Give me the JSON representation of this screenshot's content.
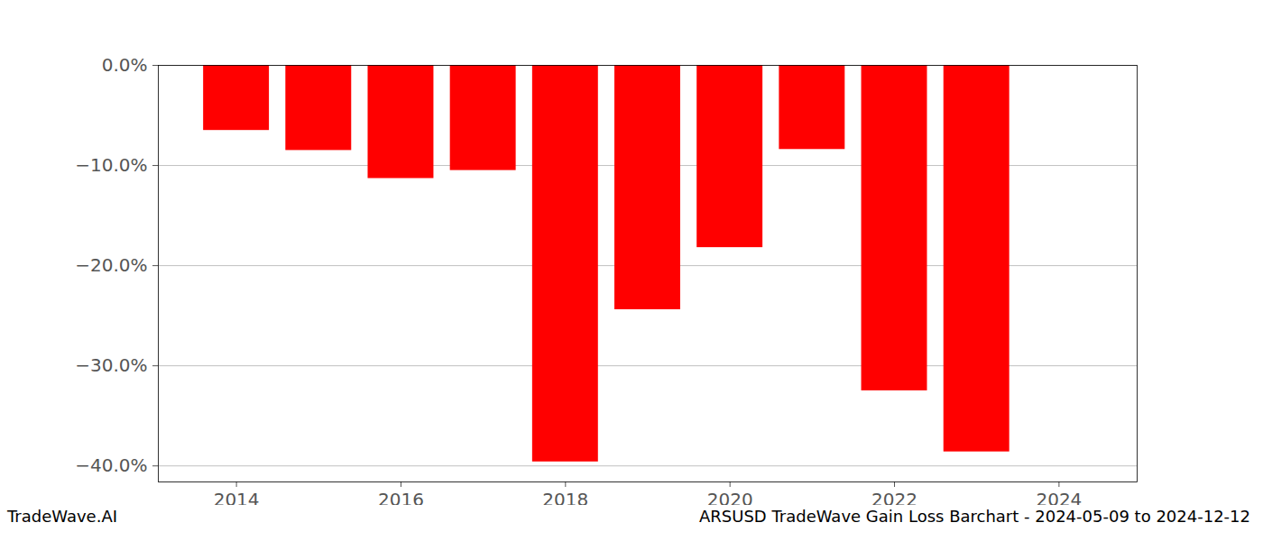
{
  "chart_data": {
    "type": "bar",
    "title": "ARSUSD TradeWave Gain Loss Barchart - 2024-05-09 to 2024-12-12",
    "source": "TradeWave.AI",
    "x": [
      2014,
      2015,
      2016,
      2017,
      2018,
      2019,
      2020,
      2021,
      2022,
      2023
    ],
    "values": [
      -6.5,
      -8.5,
      -11.3,
      -10.5,
      -39.6,
      -24.4,
      -18.2,
      -8.4,
      -32.5,
      -38.6
    ],
    "color": "#ff0000",
    "xlim": [
      2013.05,
      2024.95
    ],
    "xticks": [
      2014,
      2016,
      2018,
      2020,
      2022,
      2024
    ],
    "ylim": [
      -41.6,
      0
    ],
    "yticks": [
      {
        "value": 0,
        "label": "0.0%"
      },
      {
        "value": -10,
        "label": "−10.0%"
      },
      {
        "value": -20,
        "label": "−20.0%"
      },
      {
        "value": -30,
        "label": "−30.0%"
      },
      {
        "value": -40,
        "label": "−40.0%"
      }
    ],
    "grid": true
  }
}
